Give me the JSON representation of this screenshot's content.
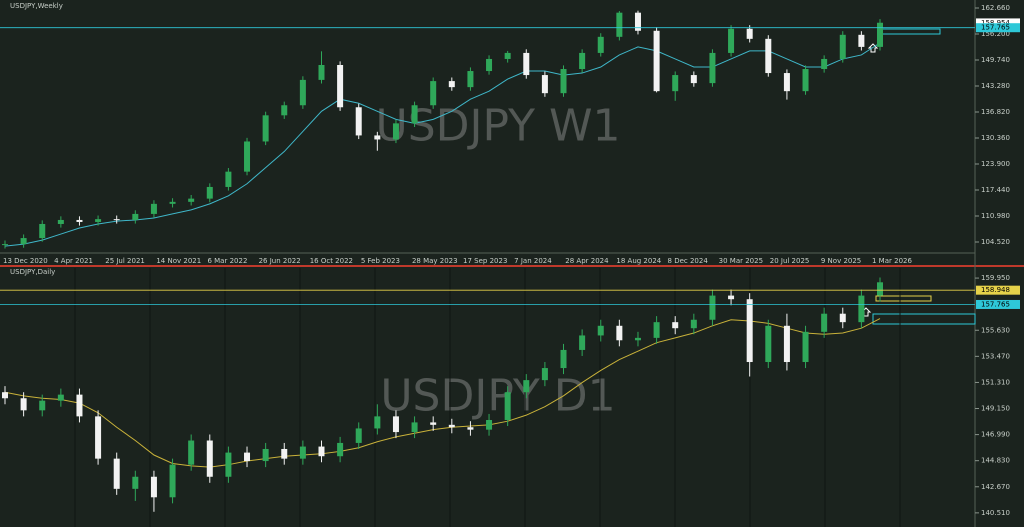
{
  "chart_data": [
    {
      "type": "candlestick",
      "title": "USDJPY,Weekly",
      "watermark": "USDJPY W1",
      "up_color": "#2fa85a",
      "down_color": "#f2f2f2",
      "ma_color": "#3fb7c9",
      "ylim": [
        101.79,
        164.65
      ],
      "yticks": [
        {
          "value": 104.52,
          "label": "104.520"
        },
        {
          "value": 110.98,
          "label": "110.980"
        },
        {
          "value": 117.44,
          "label": "117.440"
        },
        {
          "value": 123.9,
          "label": "123.900"
        },
        {
          "value": 130.36,
          "label": "130.360"
        },
        {
          "value": 136.82,
          "label": "136.820"
        },
        {
          "value": 143.28,
          "label": "143.280"
        },
        {
          "value": 149.74,
          "label": "149.740"
        },
        {
          "value": 156.2,
          "label": "156.200"
        },
        {
          "value": 162.66,
          "label": "162.660"
        }
      ],
      "xtick_labels": [
        "13 Dec 2020",
        "4 Apr 2021",
        "25 Jul 2021",
        "14 Nov 2021",
        "6 Mar 2022",
        "26 Jun 2022",
        "16 Oct 2022",
        "5 Feb 2023",
        "28 May 2023",
        "17 Sep 2023",
        "7 Jan 2024",
        "28 Apr 2024",
        "18 Aug 2024",
        "8 Dec 2024",
        "30 Mar 2025",
        "20 Jul 2025",
        "9 Nov 2025",
        "1 Mar 2026"
      ],
      "price_lines": [
        {
          "value": 158.954,
          "color": "#ffffff",
          "line": false
        },
        {
          "value": 157.765,
          "color": "#2ec8d8",
          "line": true
        }
      ],
      "open": [
        103.8,
        104.0,
        105.5,
        109.0,
        110.0,
        109.5,
        110.2,
        110.0,
        111.5,
        114.0,
        114.5,
        115.3,
        118.2,
        122.0,
        129.5,
        136.0,
        138.5,
        144.8,
        148.5,
        138.0,
        131.0,
        130.0,
        134.0,
        138.5,
        144.5,
        143.0,
        147.0,
        150.0,
        151.5,
        146.0,
        141.5,
        147.5,
        151.5,
        155.5,
        161.5,
        157.0,
        142.0,
        146.0,
        144.0,
        151.5,
        157.5,
        155.0,
        146.5,
        142.0,
        147.5,
        150.0,
        156.0,
        153.0
      ],
      "high": [
        104.9,
        106.4,
        109.9,
        110.9,
        110.9,
        111.1,
        111.1,
        112.4,
        114.9,
        115.4,
        116.2,
        119.1,
        122.9,
        130.4,
        136.9,
        139.4,
        145.7,
        151.9,
        149.4,
        138.9,
        131.9,
        134.9,
        139.4,
        145.4,
        145.4,
        147.9,
        150.9,
        152.0,
        152.4,
        146.9,
        148.4,
        152.4,
        156.4,
        161.9,
        162.0,
        157.9,
        146.9,
        146.9,
        152.4,
        158.4,
        158.4,
        155.9,
        147.4,
        148.4,
        150.9,
        156.9,
        156.9,
        159.9
      ],
      "low": [
        102.9,
        103.1,
        104.6,
        108.1,
        108.6,
        108.6,
        109.1,
        109.1,
        110.6,
        113.1,
        113.6,
        114.4,
        117.3,
        121.1,
        128.6,
        135.1,
        137.6,
        143.9,
        137.1,
        130.1,
        127.2,
        129.1,
        133.1,
        137.6,
        142.1,
        142.1,
        146.1,
        149.1,
        145.1,
        140.6,
        140.6,
        146.6,
        150.6,
        154.6,
        156.1,
        141.7,
        139.6,
        143.1,
        143.1,
        150.6,
        154.1,
        145.6,
        139.9,
        141.1,
        146.6,
        149.1,
        152.1,
        152.1
      ],
      "close": [
        104.0,
        105.5,
        109.0,
        110.0,
        109.5,
        110.2,
        110.0,
        111.5,
        114.0,
        114.5,
        115.3,
        118.2,
        122.0,
        129.5,
        136.0,
        138.5,
        144.8,
        148.5,
        138.0,
        131.0,
        130.0,
        134.0,
        138.5,
        144.5,
        143.0,
        147.0,
        150.0,
        151.5,
        146.0,
        141.5,
        147.5,
        151.5,
        155.5,
        161.5,
        157.0,
        142.0,
        146.0,
        144.0,
        151.5,
        157.5,
        155.0,
        146.5,
        142.0,
        147.5,
        150.0,
        156.0,
        153.0,
        159.0
      ],
      "ma": [
        103.5,
        104,
        105,
        106.5,
        108,
        109,
        109.7,
        110,
        110.5,
        111.5,
        112.5,
        114,
        116,
        119,
        123,
        127,
        132,
        137,
        140,
        139,
        137,
        135,
        134,
        135,
        137,
        140,
        142,
        145,
        147,
        147,
        146,
        146.5,
        148,
        151,
        153,
        152,
        150,
        148,
        148,
        150,
        152,
        152,
        150,
        148,
        148,
        150,
        151,
        154
      ]
    },
    {
      "type": "candlestick",
      "title": "USDJPY,Daily",
      "watermark": "USDJPY D1",
      "up_color": "#2fa85a",
      "down_color": "#f2f2f2",
      "ma_color": "#c9b23a",
      "ylim": [
        139.34,
        160.95
      ],
      "yticks": [
        {
          "value": 140.51,
          "label": "140.510"
        },
        {
          "value": 142.67,
          "label": "142.670"
        },
        {
          "value": 144.83,
          "label": "144.830"
        },
        {
          "value": 146.99,
          "label": "146.990"
        },
        {
          "value": 149.15,
          "label": "149.150"
        },
        {
          "value": 151.31,
          "label": "151.310"
        },
        {
          "value": 153.47,
          "label": "153.470"
        },
        {
          "value": 155.63,
          "label": "155.630"
        },
        {
          "value": 159.95,
          "label": "159.950"
        }
      ],
      "price_lines": [
        {
          "value": 158.948,
          "color": "#e6d24a",
          "line": true
        },
        {
          "value": 157.765,
          "color": "#2ec8d8",
          "line": true
        }
      ],
      "open": [
        150.5,
        150.0,
        149.0,
        149.8,
        150.3,
        148.5,
        145.0,
        142.5,
        143.5,
        141.8,
        144.5,
        146.5,
        143.5,
        145.5,
        144.8,
        145.8,
        145.0,
        146.0,
        145.2,
        146.3,
        147.5,
        148.5,
        147.2,
        148.0,
        147.8,
        147.6,
        147.4,
        148.2,
        150.5,
        151.5,
        152.5,
        154.0,
        155.2,
        156.0,
        154.8,
        155.0,
        156.3,
        155.8,
        156.5,
        158.5,
        158.2,
        153.0,
        156.0,
        153.0,
        155.5,
        157.0,
        156.3,
        158.5
      ],
      "high": [
        151.0,
        150.5,
        150.3,
        150.8,
        150.8,
        149.0,
        145.5,
        144.0,
        144.0,
        145.0,
        147.0,
        147.0,
        146.0,
        146.0,
        146.3,
        146.3,
        146.5,
        146.5,
        146.8,
        148.0,
        149.5,
        149.0,
        148.5,
        148.5,
        148.3,
        148.1,
        148.7,
        151.0,
        152.0,
        153.0,
        154.5,
        155.7,
        156.5,
        156.5,
        155.5,
        156.8,
        156.8,
        157.0,
        159.0,
        159.0,
        158.7,
        156.5,
        157.0,
        156.0,
        157.5,
        157.5,
        159.0,
        160.0
      ],
      "low": [
        149.5,
        148.5,
        148.5,
        149.3,
        148.0,
        144.5,
        142.0,
        141.5,
        140.6,
        141.3,
        144.0,
        143.0,
        143.0,
        144.3,
        144.3,
        144.5,
        144.5,
        144.7,
        144.7,
        145.8,
        147.0,
        146.7,
        146.7,
        147.3,
        147.1,
        146.9,
        146.9,
        147.7,
        150.0,
        151.0,
        152.0,
        153.5,
        154.7,
        154.3,
        154.3,
        154.5,
        155.3,
        155.3,
        156.0,
        157.7,
        151.8,
        152.5,
        152.3,
        152.5,
        155.0,
        155.8,
        155.8,
        158.0
      ],
      "close": [
        150.0,
        149.0,
        149.8,
        150.3,
        148.5,
        145.0,
        142.5,
        143.5,
        141.8,
        144.5,
        146.5,
        143.5,
        145.5,
        144.8,
        145.8,
        145.0,
        146.0,
        145.2,
        146.3,
        147.5,
        148.5,
        147.2,
        148.0,
        147.8,
        147.6,
        147.4,
        148.2,
        150.5,
        151.5,
        152.5,
        154.0,
        155.2,
        156.0,
        154.8,
        155.0,
        156.3,
        155.8,
        156.5,
        158.5,
        158.2,
        153.0,
        156.0,
        153.0,
        155.5,
        157.0,
        156.3,
        158.5,
        159.6
      ],
      "ma": [
        150.5,
        150.2,
        150.0,
        149.9,
        149.6,
        148.8,
        147.6,
        146.5,
        145.3,
        144.6,
        144.4,
        144.3,
        144.5,
        144.8,
        145.0,
        145.2,
        145.3,
        145.4,
        145.6,
        145.9,
        146.4,
        146.8,
        147.1,
        147.4,
        147.6,
        147.7,
        147.8,
        148.1,
        148.6,
        149.3,
        150.2,
        151.3,
        152.3,
        153.2,
        153.9,
        154.6,
        155.0,
        155.4,
        156.0,
        156.5,
        156.4,
        156.2,
        155.8,
        155.4,
        155.3,
        155.4,
        155.8,
        156.6
      ]
    }
  ]
}
